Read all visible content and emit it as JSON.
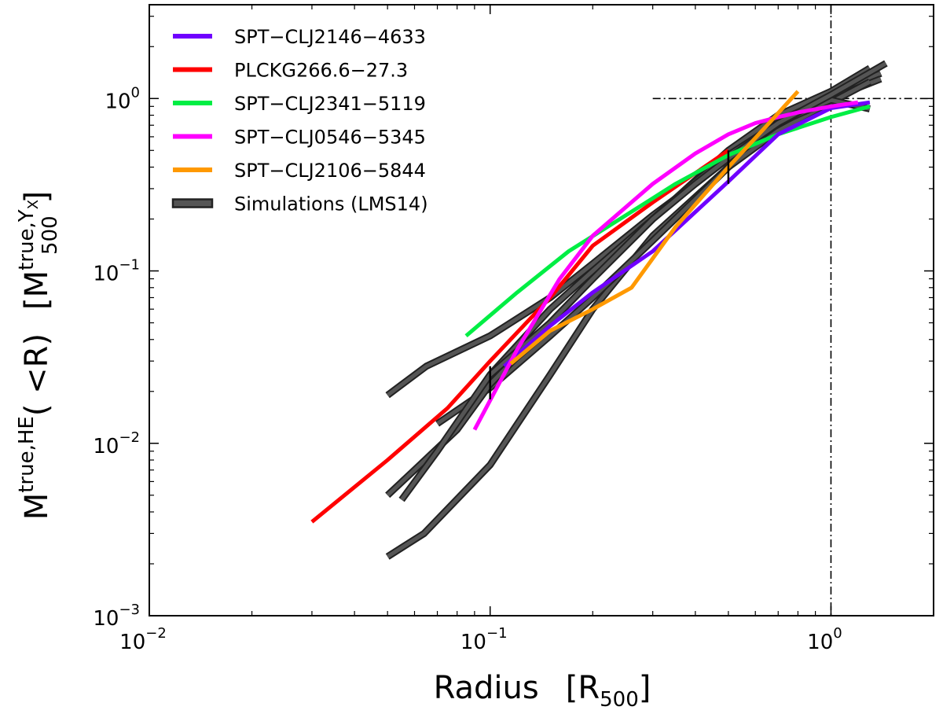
{
  "chart_data": {
    "type": "line",
    "xscale": "log",
    "yscale": "log",
    "xlim": [
      0.01,
      2.0
    ],
    "ylim": [
      0.001,
      3.5
    ],
    "xlabel": {
      "main": "Radius",
      "bracket_open": "[R",
      "sub": "500",
      "bracket_close": "]"
    },
    "ylabel": {
      "m": "M",
      "sup": "true,HE",
      "mid": "( <R)",
      "bracket_open": "[M",
      "sup2": "true,Y",
      "sup2_sub": "X",
      "sub2": "500",
      "bracket_close": "]"
    },
    "x_ticks": [
      {
        "value": 0.01,
        "base": "10",
        "exp": "−2"
      },
      {
        "value": 0.1,
        "base": "10",
        "exp": "−1"
      },
      {
        "value": 1.0,
        "base": "10",
        "exp": "0"
      }
    ],
    "y_ticks": [
      {
        "value": 0.001,
        "base": "10",
        "exp": "−3"
      },
      {
        "value": 0.01,
        "base": "10",
        "exp": "−2"
      },
      {
        "value": 0.1,
        "base": "10",
        "exp": "−1"
      },
      {
        "value": 1.0,
        "base": "10",
        "exp": "0"
      }
    ],
    "reference_lines": [
      {
        "orientation": "vertical",
        "value": 1.0,
        "style": "dash-dot"
      },
      {
        "orientation": "horizontal",
        "value": 1.0,
        "style": "dash-dot"
      }
    ],
    "series": [
      {
        "name": "Simulations (LMS14)",
        "color": "#555555",
        "kind": "simulation",
        "x": [
          0.05,
          0.064,
          0.1,
          0.15,
          0.2,
          0.3,
          0.5,
          0.7,
          1.0,
          1.4
        ],
        "y": [
          0.0022,
          0.003,
          0.0075,
          0.025,
          0.06,
          0.16,
          0.4,
          0.75,
          1.05,
          1.4
        ]
      },
      {
        "name": "Simulations (LMS14)",
        "color": "#555555",
        "kind": "simulation",
        "x": [
          0.05,
          0.065,
          0.1,
          0.15,
          0.2,
          0.3,
          0.4,
          0.5,
          0.7,
          1.0,
          1.4
        ],
        "y": [
          0.019,
          0.028,
          0.042,
          0.07,
          0.11,
          0.21,
          0.32,
          0.45,
          0.7,
          1.0,
          1.3
        ]
      },
      {
        "name": "Simulations (LMS14)",
        "color": "#555555",
        "kind": "simulation",
        "x": [
          0.07,
          0.1,
          0.15,
          0.2,
          0.3,
          0.4,
          0.5,
          0.7,
          1.0,
          1.3
        ],
        "y": [
          0.013,
          0.021,
          0.042,
          0.07,
          0.15,
          0.26,
          0.4,
          0.65,
          0.95,
          1.25
        ]
      },
      {
        "name": "Simulations (LMS14)",
        "color": "#555555",
        "kind": "simulation",
        "x": [
          0.05,
          0.06,
          0.08,
          0.1,
          0.15,
          0.2,
          0.3,
          0.5,
          0.7,
          1.0,
          1.3
        ],
        "y": [
          0.005,
          0.007,
          0.012,
          0.022,
          0.05,
          0.09,
          0.2,
          0.5,
          0.8,
          1.1,
          1.5
        ]
      },
      {
        "name": "Simulations (LMS14)",
        "color": "#555555",
        "kind": "simulation",
        "x": [
          0.055,
          0.07,
          0.1,
          0.15,
          0.2,
          0.3,
          0.4,
          0.5,
          0.7,
          1.0,
          1.3
        ],
        "y": [
          0.0047,
          0.009,
          0.025,
          0.06,
          0.1,
          0.2,
          0.33,
          0.47,
          0.72,
          0.98,
          0.87
        ]
      },
      {
        "name": "Simulations (LMS14)",
        "color": "#555555",
        "kind": "simulation",
        "x": [
          0.1,
          0.15,
          0.2,
          0.3,
          0.4,
          0.5,
          0.7,
          1.0,
          1.45
        ],
        "y": [
          0.025,
          0.05,
          0.09,
          0.2,
          0.32,
          0.45,
          0.72,
          1.05,
          1.6
        ]
      },
      {
        "name": "PLCKG266.6−27.3",
        "color": "#ff0000",
        "kind": "cluster",
        "x": [
          0.03,
          0.05,
          0.075,
          0.1,
          0.15,
          0.2,
          0.3,
          0.5
        ],
        "y": [
          0.0035,
          0.008,
          0.016,
          0.03,
          0.07,
          0.14,
          0.25,
          0.5
        ]
      },
      {
        "name": "SPT−CLJ2341−5119",
        "color": "#00ee44",
        "kind": "cluster",
        "x": [
          0.085,
          0.12,
          0.17,
          0.25,
          0.35,
          0.5,
          0.7,
          1.0,
          1.3
        ],
        "y": [
          0.042,
          0.075,
          0.13,
          0.21,
          0.32,
          0.47,
          0.62,
          0.78,
          0.9
        ]
      },
      {
        "name": "SPT−CLJ2146−4633",
        "color": "#7000ff",
        "kind": "cluster",
        "x": [
          0.11,
          0.15,
          0.2,
          0.3,
          0.5,
          0.7,
          1.0,
          1.3
        ],
        "y": [
          0.028,
          0.048,
          0.075,
          0.13,
          0.33,
          0.62,
          0.88,
          0.95
        ]
      },
      {
        "name": "SPT−CLJ0546−5345",
        "color": "#ff00ff",
        "kind": "cluster",
        "x": [
          0.09,
          0.12,
          0.16,
          0.2,
          0.3,
          0.4,
          0.5,
          0.6,
          0.7,
          0.8,
          1.0,
          1.2
        ],
        "y": [
          0.012,
          0.035,
          0.09,
          0.16,
          0.32,
          0.48,
          0.62,
          0.72,
          0.78,
          0.83,
          0.9,
          0.95
        ]
      },
      {
        "name": "SPT−CLJ2106−5844",
        "color": "#ff9900",
        "kind": "cluster",
        "x": [
          0.115,
          0.15,
          0.2,
          0.26,
          0.35,
          0.5,
          0.65,
          0.8
        ],
        "y": [
          0.029,
          0.045,
          0.06,
          0.08,
          0.18,
          0.4,
          0.7,
          1.1
        ]
      }
    ],
    "error_bars": [
      {
        "x": 0.1,
        "y_low": 0.018,
        "y_high": 0.028
      },
      {
        "x": 0.5,
        "y_low": 0.32,
        "y_high": 0.5
      }
    ],
    "legend": {
      "position": "top-left",
      "entries": [
        {
          "label": "SPT−CLJ2146−4633",
          "color": "#7000ff"
        },
        {
          "label": "PLCKG266.6−27.3",
          "color": "#ff0000"
        },
        {
          "label": "SPT−CLJ2341−5119",
          "color": "#00ee44"
        },
        {
          "label": "SPT−CLJ0546−5345",
          "color": "#ff00ff"
        },
        {
          "label": "SPT−CLJ2106−5844",
          "color": "#ff9900"
        },
        {
          "label": "Simulations (LMS14)",
          "color": "#555555",
          "outlined": true
        }
      ]
    }
  }
}
